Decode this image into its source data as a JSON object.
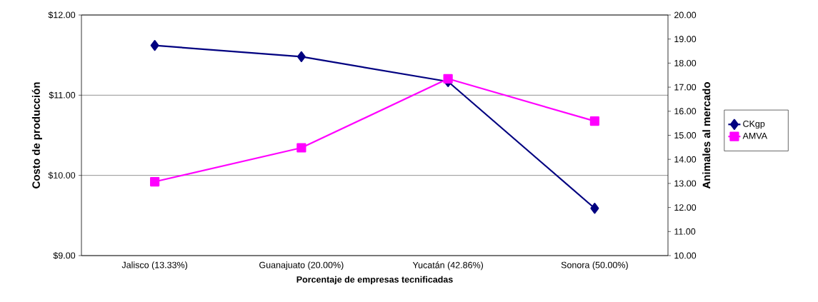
{
  "chart_data": {
    "type": "line",
    "xlabel": "Porcentaje de empresas tecnificadas",
    "ylabel": "Costo de producción",
    "y2label": "Animales al mercado",
    "categories": [
      "Jalisco (13.33%)",
      "Guanajuato (20.00%)",
      "Yucatán (42.86%)",
      "Sonora (50.00%)"
    ],
    "series": [
      {
        "name": "CKgp",
        "color": "#000080",
        "marker": "diamond",
        "values": [
          11.62,
          11.48,
          11.17,
          9.59
        ]
      },
      {
        "name": "AMVA",
        "color": "#ff00ff",
        "marker": "square",
        "axis": "y2",
        "values": [
          13.07,
          14.48,
          17.35,
          15.59
        ]
      }
    ],
    "ylim": [
      9,
      12
    ],
    "yticks": [
      {
        "value": 9,
        "label": "$9.00"
      },
      {
        "value": 10,
        "label": "$10.00"
      },
      {
        "value": 11,
        "label": "$11.00"
      },
      {
        "value": 12,
        "label": "$12.00"
      }
    ],
    "y2lim": [
      10,
      20
    ],
    "y2ticks": [
      {
        "value": 10,
        "label": "10.00"
      },
      {
        "value": 11,
        "label": "11.00"
      },
      {
        "value": 12,
        "label": "12.00"
      },
      {
        "value": 13,
        "label": "13.00"
      },
      {
        "value": 14,
        "label": "14.00"
      },
      {
        "value": 15,
        "label": "15.00"
      },
      {
        "value": 16,
        "label": "16.00"
      },
      {
        "value": 17,
        "label": "17.00"
      },
      {
        "value": 18,
        "label": "18.00"
      },
      {
        "value": 19,
        "label": "19.00"
      },
      {
        "value": 20,
        "label": "20.00"
      }
    ],
    "grid": "y",
    "legend": "right"
  }
}
